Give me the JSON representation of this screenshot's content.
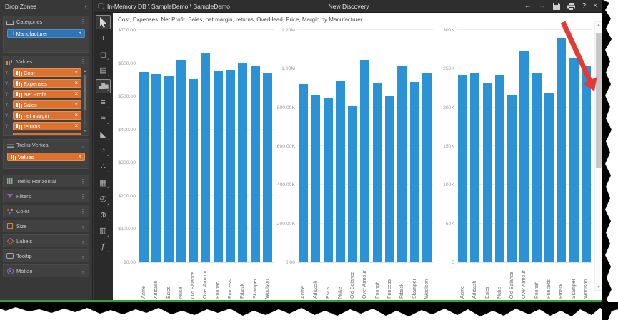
{
  "window": {
    "breadcrumb": "In-Memory DB \\ SampleDemo \\ SampleDemo",
    "title": "New Discovery",
    "nav": {
      "back": "←",
      "forward": "→",
      "help": "?",
      "close": "×"
    },
    "info_icon": "ⓘ"
  },
  "drop_zones": {
    "title": "Drop Zones",
    "collapse_icon": "‹",
    "menu_icon": "⋮",
    "remove_icon": "×",
    "categories": {
      "label": "Categories",
      "chips": [
        {
          "label": "Manufacturer",
          "icon": "∷"
        }
      ]
    },
    "values": {
      "label": "Values",
      "axis_prefix": "Y₁",
      "chips": [
        {
          "label": "Cost"
        },
        {
          "label": "Expenses"
        },
        {
          "label": "Net Profit"
        },
        {
          "label": "Sales"
        },
        {
          "label": "net margin"
        },
        {
          "label": "returns"
        }
      ],
      "partial_chip": true,
      "scroll_up": "▲",
      "scroll_down": "▼"
    },
    "trellis_vertical": {
      "label": "Trellis Vertical",
      "chips": [
        {
          "label": "Values"
        }
      ]
    },
    "simple_sections": [
      {
        "name": "trellis-horizontal",
        "label": "Trellis Horizontal"
      },
      {
        "name": "filters",
        "label": "Filters"
      },
      {
        "name": "color",
        "label": "Color"
      },
      {
        "name": "size",
        "label": "Size"
      },
      {
        "name": "labels",
        "label": "Labels"
      },
      {
        "name": "tooltip",
        "label": "Tooltip"
      },
      {
        "name": "motion",
        "label": "Motion"
      }
    ]
  },
  "tools": {
    "items": [
      {
        "name": "pointer-tool",
        "svg": "cursor",
        "selected": true
      },
      {
        "name": "pan-tool",
        "glyph": "+"
      },
      {
        "name": "lasso-select-tool",
        "glyph": "◻",
        "flyout": true
      },
      {
        "name": "data-grid-tool",
        "glyph": "▤",
        "flyout": true
      },
      {
        "name": "column-chart-tool",
        "glyph": "▄█▆",
        "bars": true,
        "selected": true,
        "flyout": true
      },
      {
        "name": "bar-chart-tool",
        "glyph": "≡",
        "flyout": true
      },
      {
        "name": "line-chart-tool",
        "glyph": "≈",
        "flyout": true
      },
      {
        "name": "area-chart-tool",
        "glyph": "◣",
        "flyout": true
      },
      {
        "name": "pie-chart-tool",
        "glyph": "◔",
        "flyout": true
      },
      {
        "name": "scatter-chart-tool",
        "glyph": "∴",
        "flyout": true
      },
      {
        "name": "treemap-tool",
        "glyph": "▦",
        "flyout": true
      },
      {
        "name": "gauge-tool",
        "glyph": "◴",
        "flyout": true
      },
      {
        "name": "map-tool",
        "glyph": "⊕",
        "flyout": true
      },
      {
        "name": "crosstab-tool",
        "glyph": "▥",
        "flyout": true
      },
      {
        "name": "funnel-chart-tool",
        "glyph": "ƒ",
        "flyout": true
      }
    ]
  },
  "chart": {
    "title": "Cost, Expenses, Net Profit, Sales, net margin, returns, OverHead, Price, Margin by Manufacturer",
    "scrollbar": {
      "up": "▲",
      "down": "▼"
    }
  },
  "annotation": {
    "type": "red-arrow",
    "color": "#e23b35",
    "points_at": "vertical-scrollbar"
  },
  "chart_data": {
    "type": "bar",
    "bar_color": "#2B93D5",
    "grid": true,
    "legend": "none",
    "categories": [
      "Acme",
      "Adibash",
      "Esics",
      "Nuke",
      "Old Balance",
      "Over Armour",
      "Poonah",
      "Princess",
      "Riback",
      "Skamper",
      "Woolson"
    ],
    "panels": [
      {
        "name": "panel-1",
        "ylim": [
          0,
          700
        ],
        "yticks": [
          {
            "v": 700,
            "label": "$700.00"
          },
          {
            "v": 600,
            "label": "$600.00"
          },
          {
            "v": 500,
            "label": "$500.00"
          },
          {
            "v": 400,
            "label": "$400.00"
          },
          {
            "v": 300,
            "label": "$300.00"
          },
          {
            "v": 200,
            "label": "$200.00"
          },
          {
            "v": 100,
            "label": "$100.00"
          },
          {
            "v": 0,
            "label": "$0.00"
          }
        ],
        "values": [
          574,
          566,
          563,
          609,
          552,
          631,
          576,
          580,
          601,
          592,
          571
        ]
      },
      {
        "name": "panel-2",
        "ylim": [
          0,
          1200000
        ],
        "yticks": [
          {
            "v": 1200000,
            "label": "1.20M"
          },
          {
            "v": 1000000,
            "label": "1.00M"
          },
          {
            "v": 800000,
            "label": "800.00K"
          },
          {
            "v": 600000,
            "label": "600.00K"
          },
          {
            "v": 400000,
            "label": "400.00K"
          },
          {
            "v": 200000,
            "label": "200.00K"
          },
          {
            "v": 0,
            "label": "0.00"
          }
        ],
        "values": [
          920000,
          866000,
          848000,
          937000,
          808000,
          1046000,
          929000,
          863000,
          1011000,
          932000,
          977000
        ]
      },
      {
        "name": "panel-3",
        "ylim": [
          0,
          300000
        ],
        "yticks": [
          {
            "v": 300000,
            "label": "300K"
          },
          {
            "v": 250000,
            "label": "250K"
          },
          {
            "v": 200000,
            "label": "200K"
          },
          {
            "v": 150000,
            "label": "150K"
          },
          {
            "v": 100000,
            "label": "100K"
          },
          {
            "v": 50000,
            "label": "50K"
          },
          {
            "v": 0,
            "label": "0"
          }
        ],
        "values": [
          242000,
          244000,
          232000,
          242000,
          216000,
          273000,
          245000,
          218000,
          289000,
          263000,
          253000
        ]
      }
    ]
  }
}
